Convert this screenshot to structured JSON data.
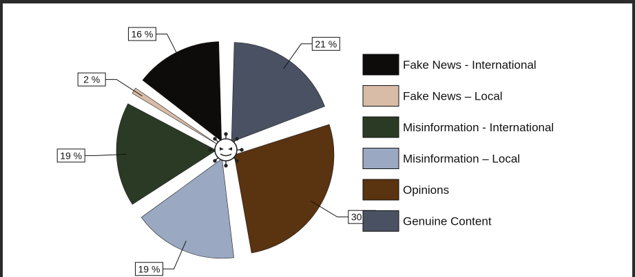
{
  "chart_data": {
    "type": "pie",
    "title": "",
    "categories": [
      "Fake News - International",
      "Fake News – Local",
      "Misinformation - International",
      "Misinformation – Local",
      "Opinions",
      "Genuine Content"
    ],
    "values": [
      16,
      2,
      19,
      19,
      30,
      21
    ],
    "value_labels": [
      "16 %",
      "2 %",
      "19 %",
      "19 %",
      "30 %",
      "21 %"
    ],
    "colors": [
      "#0d0c0b",
      "#d8bca7",
      "#2b3a24",
      "#9aa8c1",
      "#5a3310",
      "#4a5163"
    ],
    "legend_position": "right",
    "exploded": true,
    "center_icon": "virus-face-icon"
  }
}
